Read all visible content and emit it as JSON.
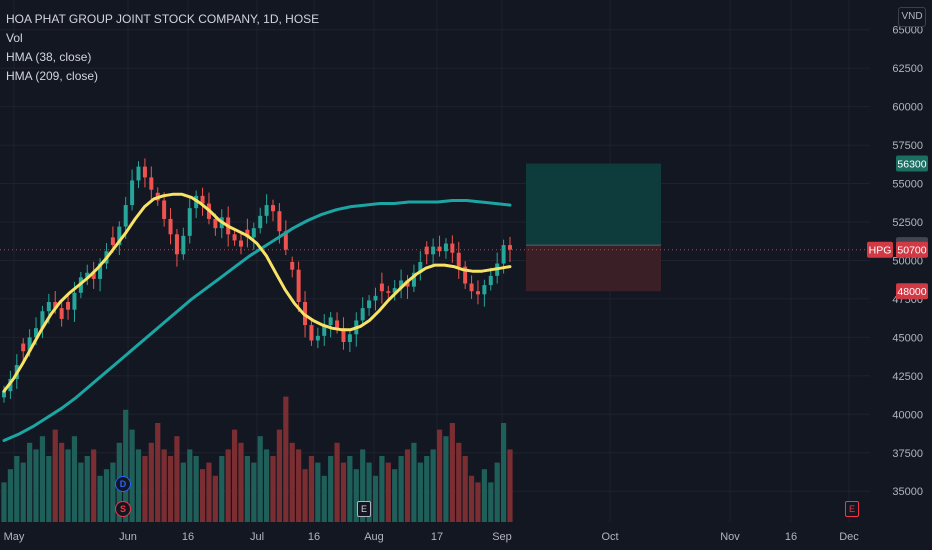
{
  "header": {
    "title": "HOA PHAT GROUP JOINT STOCK COMPANY, 1D, HOSE",
    "indicators": [
      "Vol",
      "HMA (38, close)",
      "HMA (209, close)"
    ],
    "currency": "VND"
  },
  "events": {
    "dividend": "D",
    "split": "S",
    "earnings": [
      "E",
      "E"
    ]
  },
  "colors": {
    "background": "#131722",
    "grid": "#1e222d",
    "axis_text": "#b2b5be",
    "up": "#26a69a",
    "down": "#ef5350",
    "vol_up": "#1f5f5a",
    "vol_down": "#7a2e32",
    "hma38": "#f7e465",
    "hma209": "#1ba6a4",
    "target_zone": "#0e3b3c",
    "stop_zone": "#3b1f26",
    "tag_target": "#1b6e62",
    "tag_stop": "#d13a45",
    "tag_price": "#d13a45",
    "tag_entry": "#434651"
  },
  "chart_data": {
    "type": "candlestick",
    "y_axis": {
      "ticks": [
        35000,
        37500,
        40000,
        42500,
        45000,
        47500,
        50000,
        52500,
        55000,
        57500,
        60000,
        62500,
        65000
      ],
      "ylim": [
        33000,
        65500
      ]
    },
    "x_axis": {
      "ticks": [
        "May",
        "Jun",
        "16",
        "Jul",
        "16",
        "Aug",
        "17",
        "Sep",
        "Oct",
        "Nov",
        "16",
        "Dec"
      ]
    },
    "price_tags": [
      {
        "label": "",
        "value": "56300",
        "kind": "target"
      },
      {
        "label": "",
        "value": "51000",
        "kind": "entry"
      },
      {
        "label": "HPG",
        "value": "50700",
        "kind": "price"
      },
      {
        "label": "",
        "value": "48000",
        "kind": "stop"
      }
    ],
    "position_tool": {
      "entry": 51000,
      "target": 56300,
      "stop": 48000
    },
    "ohlc_close": [
      41500,
      42300,
      43200,
      44100,
      45000,
      45600,
      46700,
      47300,
      46900,
      46200,
      46800,
      47900,
      48900,
      49200,
      48800,
      49800,
      50600,
      51000,
      52200,
      53600,
      55200,
      56100,
      55400,
      54600,
      53900,
      52700,
      51700,
      50400,
      51600,
      53400,
      54200,
      53700,
      52700,
      52100,
      52800,
      51700,
      51300,
      50900,
      51500,
      52100,
      52900,
      53600,
      53200,
      51900,
      50700,
      49400,
      47300,
      45800,
      44800,
      45100,
      45800,
      46300,
      45600,
      44700,
      45200,
      46100,
      46900,
      47400,
      47700,
      48000,
      47900,
      48200,
      48700,
      48300,
      49200,
      49900,
      50400,
      50900,
      50600,
      51100,
      50500,
      49600,
      48500,
      48000,
      47800,
      48400,
      49000,
      49800,
      51000,
      50700
    ],
    "volume_relative": [
      0.3,
      0.4,
      0.5,
      0.45,
      0.6,
      0.55,
      0.65,
      0.5,
      0.7,
      0.6,
      0.55,
      0.65,
      0.45,
      0.5,
      0.55,
      0.35,
      0.4,
      0.45,
      0.6,
      0.85,
      0.7,
      0.55,
      0.5,
      0.6,
      0.75,
      0.55,
      0.5,
      0.65,
      0.45,
      0.55,
      0.5,
      0.4,
      0.45,
      0.35,
      0.5,
      0.55,
      0.7,
      0.6,
      0.5,
      0.45,
      0.65,
      0.55,
      0.5,
      0.7,
      0.95,
      0.6,
      0.55,
      0.4,
      0.5,
      0.45,
      0.35,
      0.5,
      0.6,
      0.45,
      0.5,
      0.4,
      0.55,
      0.45,
      0.35,
      0.5,
      0.45,
      0.4,
      0.5,
      0.55,
      0.6,
      0.45,
      0.5,
      0.55,
      0.7,
      0.65,
      0.75,
      0.6,
      0.5,
      0.35,
      0.3,
      0.4,
      0.3,
      0.45,
      0.75,
      0.55
    ],
    "hma38": [
      41500,
      42300,
      43300,
      44400,
      45500,
      46500,
      47300,
      47900,
      48400,
      48900,
      49500,
      50200,
      51000,
      51800,
      52700,
      53500,
      54000,
      54200,
      54300,
      54300,
      54100,
      53700,
      53200,
      52600,
      52200,
      51900,
      51600,
      51100,
      50300,
      49200,
      48100,
      47200,
      46500,
      46100,
      45800,
      45600,
      45500,
      45500,
      45700,
      46100,
      46700,
      47400,
      48000,
      48600,
      49100,
      49500,
      49700,
      49700,
      49600,
      49400,
      49300,
      49300,
      49400,
      49500,
      49600
    ],
    "hma209": [
      38300,
      38700,
      39200,
      39800,
      40400,
      41100,
      41900,
      42700,
      43500,
      44300,
      45100,
      45900,
      46700,
      47500,
      48200,
      48900,
      49600,
      50300,
      50900,
      51500,
      52100,
      52600,
      53000,
      53300,
      53500,
      53600,
      53700,
      53700,
      53800,
      53800,
      53800,
      53900,
      53900,
      53800,
      53700,
      53600
    ]
  }
}
